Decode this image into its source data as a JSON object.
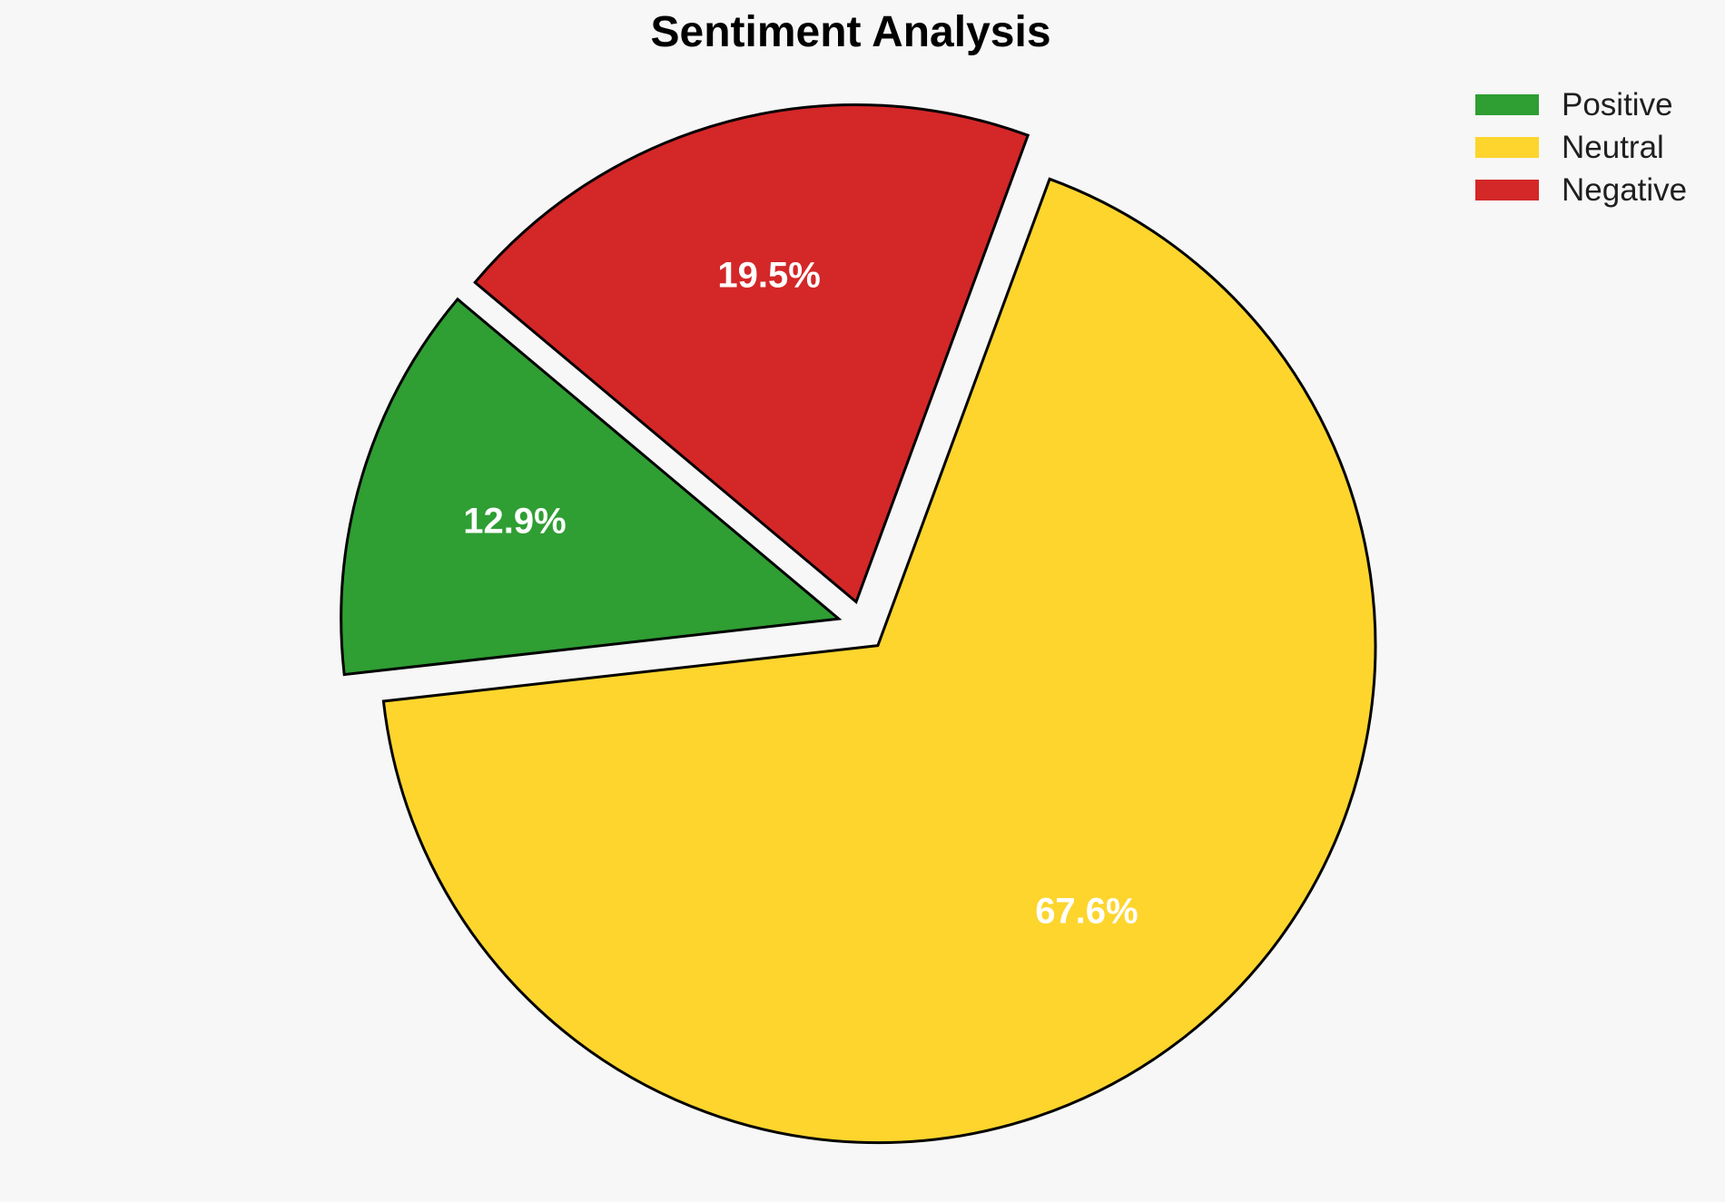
{
  "figure": {
    "background": "#f7f7f7"
  },
  "chart_data": {
    "type": "pie",
    "title": "Sentiment Analysis",
    "labels": [
      "Positive",
      "Neutral",
      "Negative"
    ],
    "values": [
      12.9,
      67.6,
      19.5
    ],
    "pct_labels": [
      "12.9%",
      "67.6%",
      "19.5%"
    ],
    "colors": [
      "#2f9e33",
      "#fdd52d",
      "#d42728"
    ],
    "edge_color": "#000000",
    "pct_label_color": "#ffffff",
    "startangle": 140,
    "direction": "counterclockwise",
    "explode": [
      0.05,
      0.05,
      0.05
    ],
    "legend": {
      "position": "upper right",
      "entries": [
        "Positive",
        "Neutral",
        "Negative"
      ]
    }
  }
}
